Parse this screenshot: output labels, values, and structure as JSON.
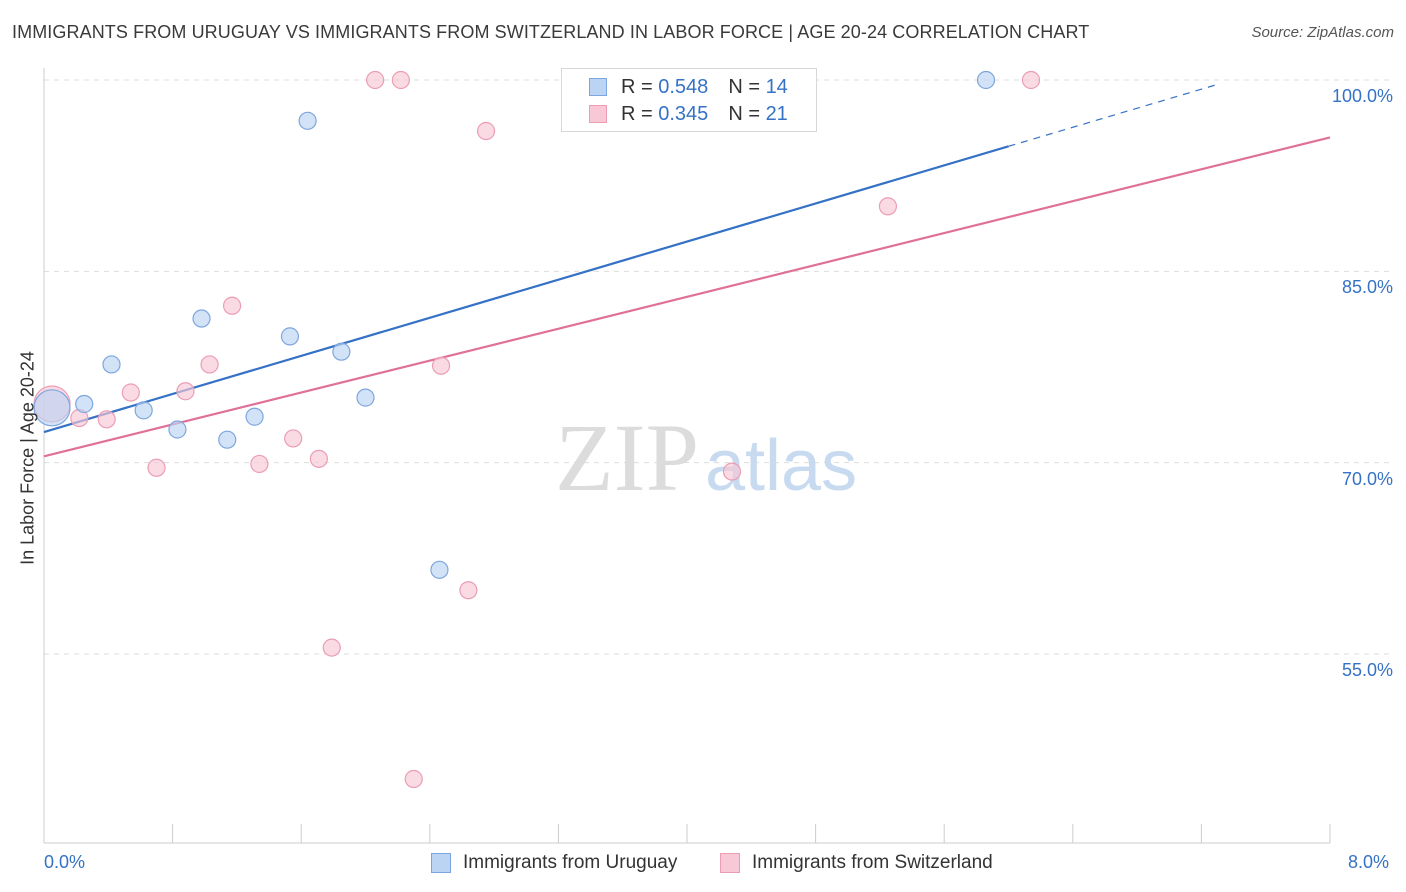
{
  "header": {
    "title": "IMMIGRANTS FROM URUGUAY VS IMMIGRANTS FROM SWITZERLAND IN LABOR FORCE | AGE 20-24 CORRELATION CHART",
    "source": "Source: ZipAtlas.com"
  },
  "watermark": {
    "zip": "ZIP",
    "atlas": "atlas"
  },
  "legend": {
    "uruguay": {
      "r_label": "R = ",
      "r_value": "0.548",
      "n_label": "N = ",
      "n_value": "14"
    },
    "switzerland": {
      "r_label": "R = ",
      "r_value": "0.345",
      "n_label": "N = ",
      "n_value": "21"
    }
  },
  "colors": {
    "uruguay_fill": "#bcd4f3",
    "uruguay_stroke": "#7ea6de",
    "uruguay_line": "#3572c6",
    "switzerland_fill": "#f8c8d6",
    "switzerland_stroke": "#eb9db4",
    "switzerland_line": "#e07098",
    "axis_label": "#3572c6",
    "grid": "#dddddd"
  },
  "chart_data": {
    "type": "scatter",
    "title": "IMMIGRANTS FROM URUGUAY VS IMMIGRANTS FROM SWITZERLAND IN LABOR FORCE | AGE 20-24 CORRELATION CHART",
    "xlabel": "",
    "ylabel": "In Labor Force | Age 20-24",
    "xlim": [
      0.0,
      8.0
    ],
    "ylim": [
      37.0,
      100.0
    ],
    "x_tick_labels": [
      "0.0%",
      "8.0%"
    ],
    "y_ticks": [
      55.0,
      70.0,
      85.0,
      100.0
    ],
    "y_tick_labels": [
      "55.0%",
      "70.0%",
      "85.0%",
      "100.0%"
    ],
    "grid": "horizontal dashed",
    "legend_position": "top-center",
    "series": [
      {
        "name": "Immigrants from Uruguay",
        "r": 0.548,
        "n": 14,
        "points": [
          {
            "x": 0.05,
            "y": 74.3,
            "size": "large"
          },
          {
            "x": 0.25,
            "y": 74.6
          },
          {
            "x": 0.42,
            "y": 77.7
          },
          {
            "x": 0.62,
            "y": 74.1
          },
          {
            "x": 0.83,
            "y": 72.6
          },
          {
            "x": 0.98,
            "y": 81.3
          },
          {
            "x": 1.14,
            "y": 71.8
          },
          {
            "x": 1.31,
            "y": 73.6
          },
          {
            "x": 1.53,
            "y": 79.9
          },
          {
            "x": 1.64,
            "y": 96.8
          },
          {
            "x": 1.85,
            "y": 78.7
          },
          {
            "x": 2.0,
            "y": 75.1
          },
          {
            "x": 2.46,
            "y": 61.6
          },
          {
            "x": 5.86,
            "y": 100.0
          }
        ],
        "trend": {
          "x0": 0.0,
          "y0": 72.4,
          "x1": 6.0,
          "y1": 94.8,
          "dashed_to_x": 7.3
        }
      },
      {
        "name": "Immigrants from Switzerland",
        "r": 0.345,
        "n": 21,
        "points": [
          {
            "x": 0.05,
            "y": 74.6,
            "size": "large"
          },
          {
            "x": 0.22,
            "y": 73.5
          },
          {
            "x": 0.39,
            "y": 73.4
          },
          {
            "x": 0.54,
            "y": 75.5
          },
          {
            "x": 0.7,
            "y": 69.6
          },
          {
            "x": 0.88,
            "y": 75.6
          },
          {
            "x": 1.03,
            "y": 77.7
          },
          {
            "x": 1.17,
            "y": 82.3
          },
          {
            "x": 1.34,
            "y": 69.9
          },
          {
            "x": 1.55,
            "y": 71.9
          },
          {
            "x": 1.71,
            "y": 70.3
          },
          {
            "x": 1.79,
            "y": 55.5
          },
          {
            "x": 2.06,
            "y": 100.0
          },
          {
            "x": 2.22,
            "y": 100.0
          },
          {
            "x": 2.3,
            "y": 45.2
          },
          {
            "x": 2.47,
            "y": 77.6
          },
          {
            "x": 2.64,
            "y": 60.0
          },
          {
            "x": 2.75,
            "y": 96.0
          },
          {
            "x": 4.28,
            "y": 69.3
          },
          {
            "x": 5.25,
            "y": 90.1
          },
          {
            "x": 6.14,
            "y": 100.0
          }
        ],
        "trend": {
          "x0": 0.0,
          "y0": 70.5,
          "x1": 8.0,
          "y1": 95.5
        }
      }
    ]
  },
  "axes": {
    "x_min_label": "0.0%",
    "x_max_label": "8.0%",
    "y_title": "In Labor Force | Age 20-24"
  },
  "bottom_legend": {
    "uruguay": "Immigrants from Uruguay",
    "switzerland": "Immigrants from Switzerland"
  }
}
